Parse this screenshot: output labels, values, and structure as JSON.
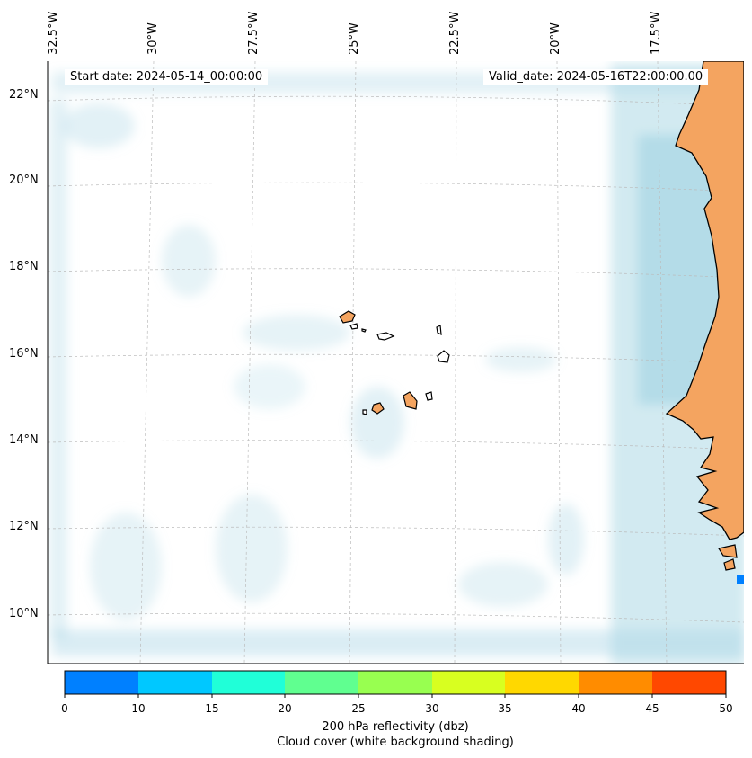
{
  "map": {
    "start_date": "Start date: 2024-05-14_00:00:00",
    "valid_date": "Valid_date: 2024-05-16T22:00:00.00",
    "lon_labels": [
      "32.5°W",
      "30°W",
      "27.5°W",
      "25°W",
      "22.5°W",
      "20°W",
      "17.5°W"
    ],
    "lat_labels": [
      "22°N",
      "20°N",
      "18°N",
      "16°N",
      "14°N",
      "12°N",
      "10°N"
    ],
    "colors": {
      "land": "#f4a460",
      "cloud": "#add8e6",
      "grid": "#bbbbbb"
    }
  },
  "colorbar": {
    "ticks": [
      "0",
      "10",
      "15",
      "20",
      "25",
      "30",
      "35",
      "40",
      "45",
      "50"
    ],
    "colors": [
      "#0080ff",
      "#00c8ff",
      "#20ffd8",
      "#60ff90",
      "#98ff50",
      "#d8ff20",
      "#ffd800",
      "#ff8c00",
      "#ff4800"
    ],
    "label_line1": "200 hPa reflectivity (dbz)",
    "label_line2": "Cloud cover (white background shading)"
  }
}
